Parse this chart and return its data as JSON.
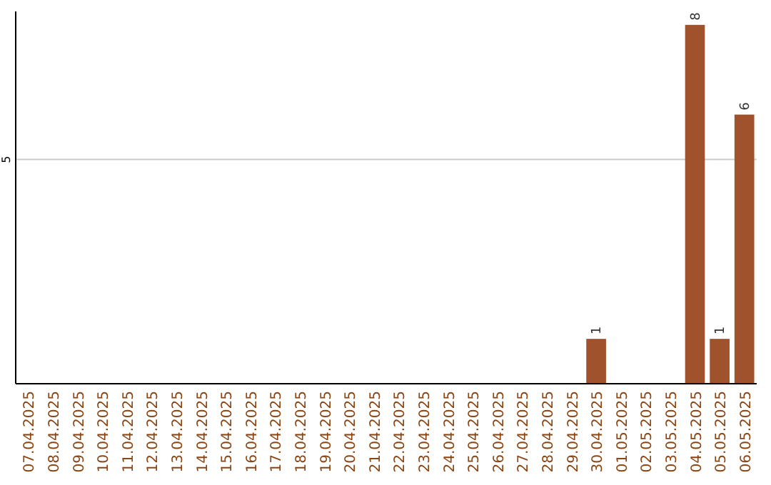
{
  "chart_data": {
    "type": "bar",
    "categories": [
      "07.04.2025",
      "08.04.2025",
      "09.04.2025",
      "10.04.2025",
      "11.04.2025",
      "12.04.2025",
      "13.04.2025",
      "14.04.2025",
      "15.04.2025",
      "16.04.2025",
      "17.04.2025",
      "18.04.2025",
      "19.04.2025",
      "20.04.2025",
      "21.04.2025",
      "22.04.2025",
      "23.04.2025",
      "24.04.2025",
      "25.04.2025",
      "26.04.2025",
      "27.04.2025",
      "28.04.2025",
      "29.04.2025",
      "30.04.2025",
      "01.05.2025",
      "02.05.2025",
      "03.05.2025",
      "04.05.2025",
      "05.05.2025",
      "06.05.2025"
    ],
    "values": [
      null,
      null,
      null,
      null,
      null,
      null,
      null,
      null,
      null,
      null,
      null,
      null,
      null,
      null,
      null,
      null,
      null,
      null,
      null,
      null,
      null,
      null,
      null,
      1,
      null,
      null,
      null,
      8,
      1,
      6
    ],
    "data_labels": true,
    "color": "#a0522d",
    "ylim": [
      0,
      8.3
    ],
    "yticks": [
      5
    ],
    "grid": "y"
  }
}
